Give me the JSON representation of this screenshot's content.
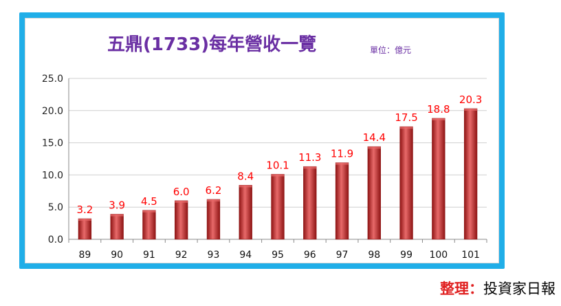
{
  "chart_data": {
    "type": "bar",
    "title": "五鼎(1733)每年營收一覽",
    "unit_label": "單位：億元",
    "categories": [
      "89",
      "90",
      "91",
      "92",
      "93",
      "94",
      "95",
      "96",
      "97",
      "98",
      "99",
      "100",
      "101"
    ],
    "values": [
      3.2,
      3.9,
      4.5,
      6.0,
      6.2,
      8.4,
      10.1,
      11.3,
      11.9,
      14.4,
      17.5,
      18.8,
      20.3
    ],
    "y_ticks": [
      "0.0",
      "5.0",
      "10.0",
      "15.0",
      "20.0",
      "25.0"
    ],
    "ylim": [
      0,
      25
    ],
    "grid": true,
    "colors": {
      "bar": "#c22a2a",
      "bar_light": "#e86a6a",
      "bar_dark": "#8e1414",
      "label": "#ff0000",
      "title": "#6a2fa3",
      "frame": "#20aee8"
    }
  },
  "credit": {
    "label": "整理：",
    "source": "投資家日報"
  }
}
